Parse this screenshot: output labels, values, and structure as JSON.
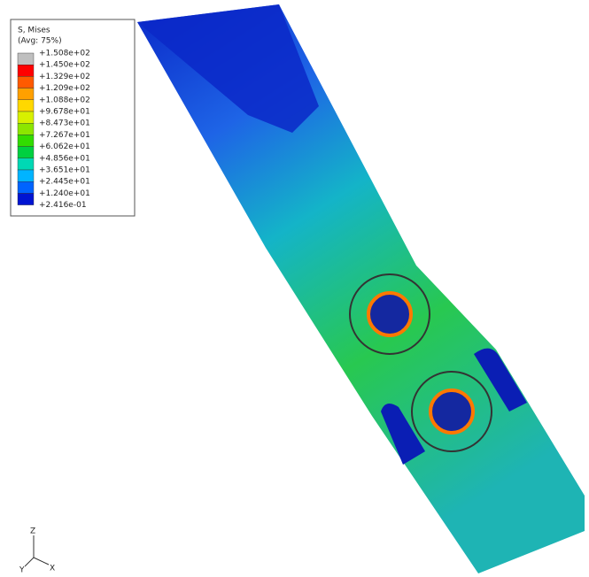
{
  "legend": {
    "title": "S, Mises",
    "subtitle": "(Avg: 75%)",
    "levels": [
      {
        "label": "+1.508e+02",
        "color": "#bfbfbf"
      },
      {
        "label": "+1.450e+02",
        "color": "#ff0000"
      },
      {
        "label": "+1.329e+02",
        "color": "#ff5a00"
      },
      {
        "label": "+1.209e+02",
        "color": "#ffa000"
      },
      {
        "label": "+1.088e+02",
        "color": "#ffd800"
      },
      {
        "label": "+9.678e+01",
        "color": "#d8f000"
      },
      {
        "label": "+8.473e+01",
        "color": "#8ce600"
      },
      {
        "label": "+7.267e+01",
        "color": "#32dc00"
      },
      {
        "label": "+6.062e+01",
        "color": "#00d040"
      },
      {
        "label": "+4.856e+01",
        "color": "#00d8b4"
      },
      {
        "label": "+3.651e+01",
        "color": "#00b4ff"
      },
      {
        "label": "+2.445e+01",
        "color": "#0064ff"
      },
      {
        "label": "+1.240e+01",
        "color": "#0014d2"
      },
      {
        "label": "+2.416e-01",
        "color": null
      }
    ]
  },
  "triad": {
    "z": "Z",
    "y": "Y",
    "x": "X"
  }
}
